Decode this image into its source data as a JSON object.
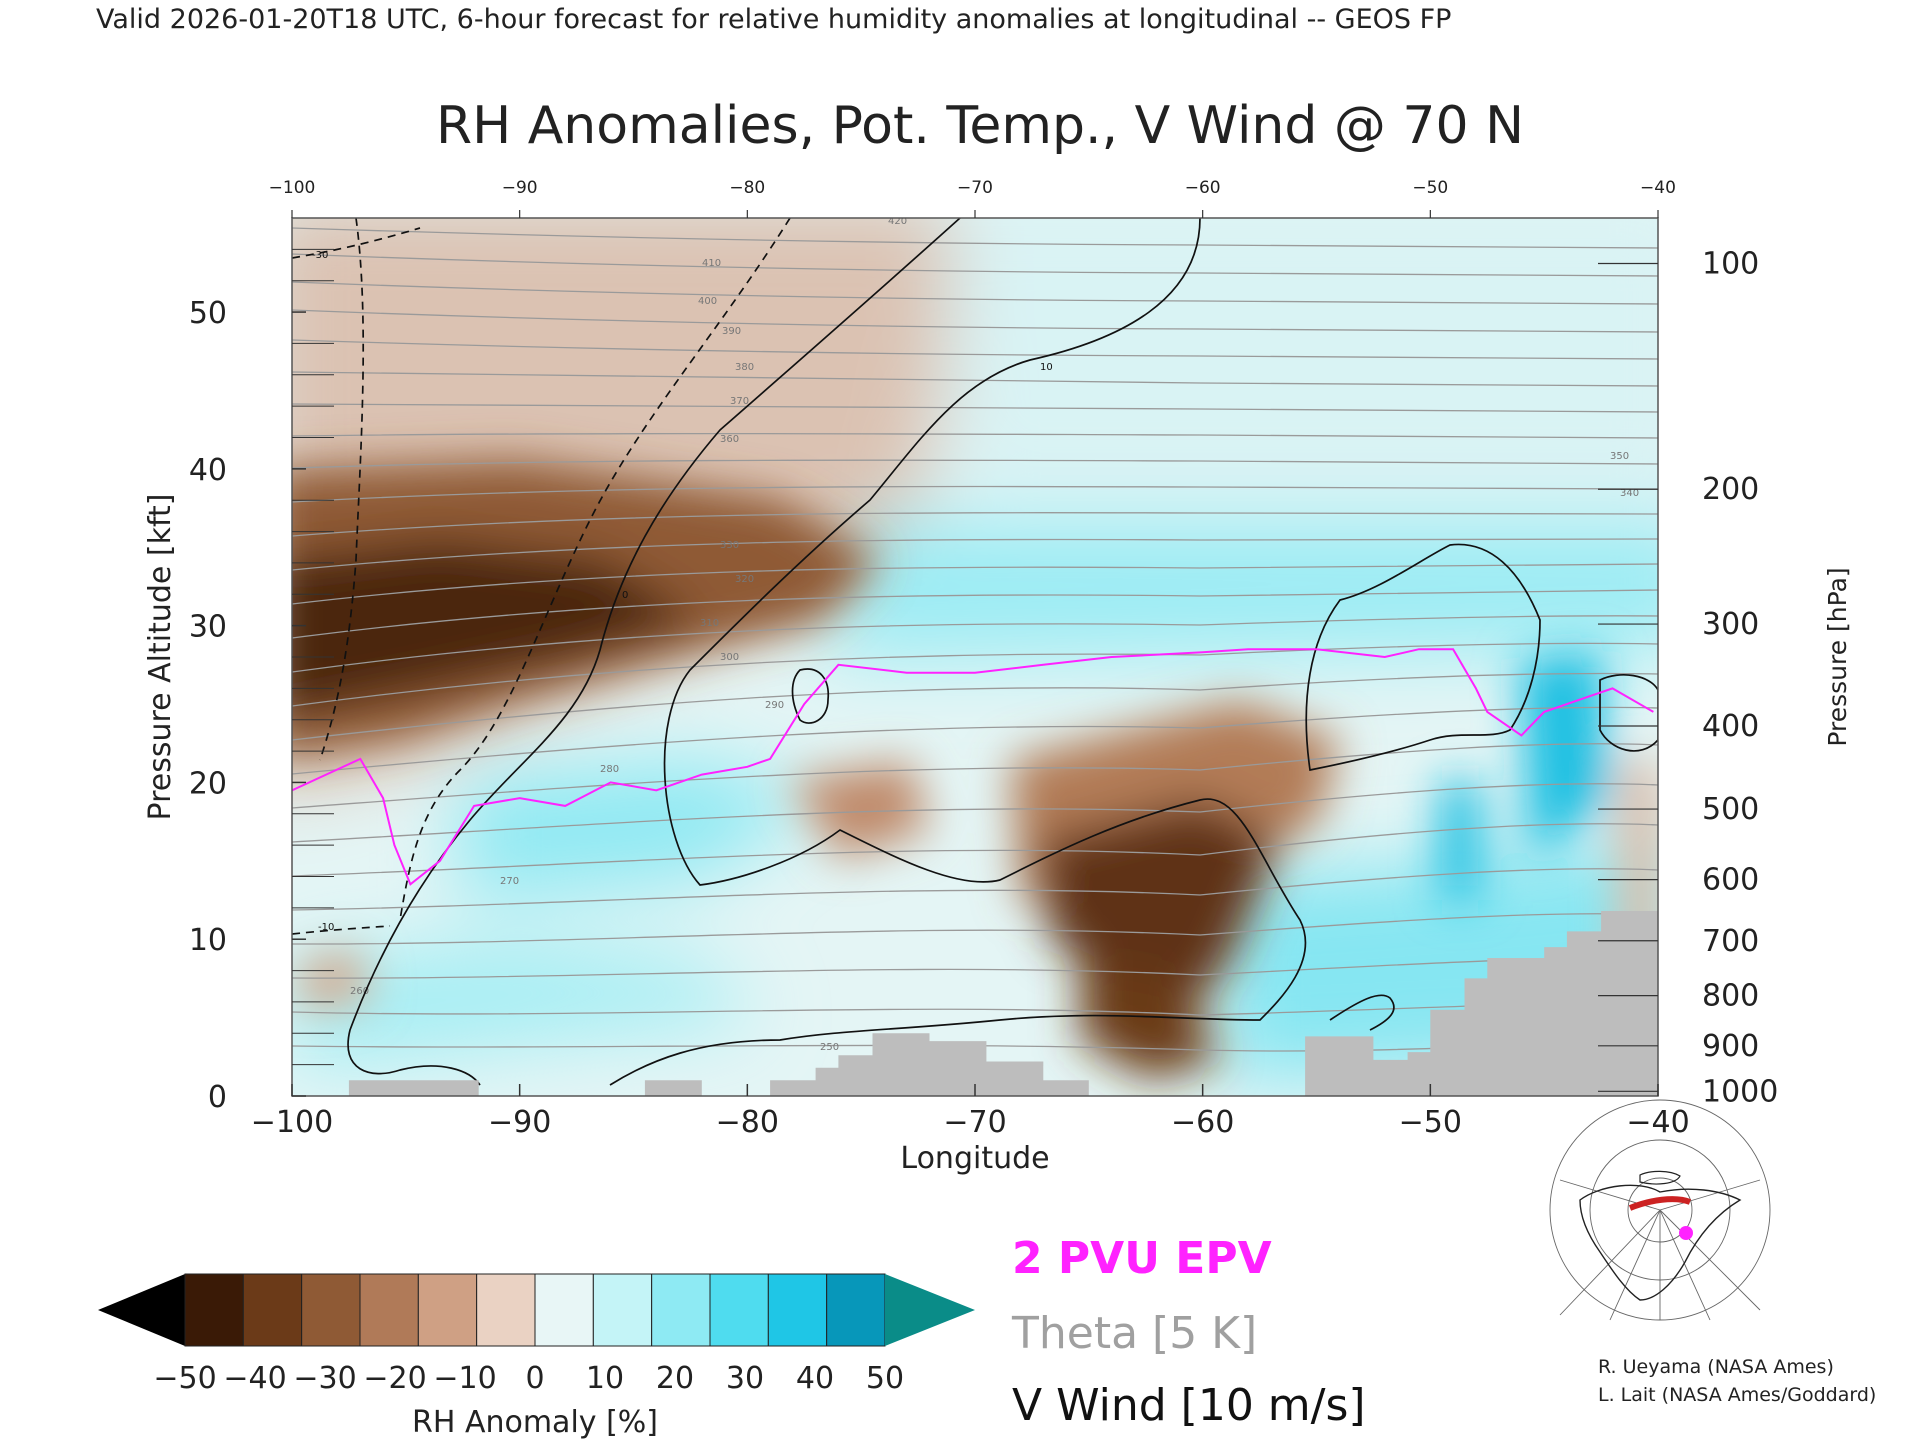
{
  "header": "Valid 2026-01-20T18 UTC, 6-hour forecast for relative humidity anomalies at longitudinal -- GEOS FP",
  "chart_data": {
    "type": "heatmap",
    "title": "RH Anomalies, Pot. Temp., V Wind @ 70 N",
    "xlabel": "Longitude",
    "ylabel": "Pressure Altitude [kft]",
    "y2label": "Pressure [hPa]",
    "xlim": [
      -100,
      -40
    ],
    "ylim": [
      0,
      56
    ],
    "xticks": [
      "−100",
      "−90",
      "−80",
      "−70",
      "−60",
      "−50",
      "−40"
    ],
    "top_xticks": [
      "−100",
      "−90",
      "−80",
      "−70",
      "−60",
      "−50",
      "−40"
    ],
    "yticks": [
      "0",
      "10",
      "20",
      "30",
      "40",
      "50"
    ],
    "pressure_ticks": [
      {
        "label": "100",
        "kft": 53.1
      },
      {
        "label": "200",
        "kft": 38.7
      },
      {
        "label": "300",
        "kft": 30.1
      },
      {
        "label": "400",
        "kft": 23.6
      },
      {
        "label": "500",
        "kft": 18.3
      },
      {
        "label": "600",
        "kft": 13.8
      },
      {
        "label": "700",
        "kft": 9.9
      },
      {
        "label": "800",
        "kft": 6.4
      },
      {
        "label": "900",
        "kft": 3.2
      },
      {
        "label": "1000",
        "kft": 0.3
      }
    ],
    "colorbar": {
      "label": "RH Anomaly [%]",
      "ticks": [
        "−50",
        "−40",
        "−30",
        "−20",
        "−10",
        "0",
        "10",
        "20",
        "30",
        "40",
        "50"
      ],
      "colors": [
        "#000000",
        "#3a1a06",
        "#6b3a18",
        "#8f5a35",
        "#b07a58",
        "#cfa084",
        "#ead2c3",
        "#e8f6f6",
        "#c4f4f7",
        "#8eeaf3",
        "#4fdcef",
        "#1fc6e6",
        "#0797ba",
        "#0a8c88"
      ]
    },
    "series": [
      {
        "name": "2 PVU EPV",
        "color": "#ff22ff",
        "x": [
          -100,
          -98.5,
          -97,
          -96,
          -95.5,
          -94.8,
          -93.5,
          -92,
          -90,
          -88,
          -86,
          -84,
          -82,
          -80,
          -79,
          -77.5,
          -76,
          -73,
          -70,
          -67,
          -64,
          -60,
          -58,
          -55,
          -52,
          -50.5,
          -49,
          -48,
          -47.5,
          -46,
          -45,
          -43,
          -42,
          -40.2
        ],
        "y": [
          19.5,
          20.5,
          21.5,
          19,
          16,
          13.5,
          15,
          18.5,
          19,
          18.5,
          20,
          19.5,
          20.5,
          21,
          21.5,
          25,
          27.5,
          27,
          27,
          27.5,
          28,
          28.3,
          28.5,
          28.5,
          28,
          28.5,
          28.5,
          26,
          24.5,
          23,
          24.5,
          25.5,
          26,
          24.5
        ]
      },
      {
        "name": "V Wind [10 m/s]",
        "color": "#111111",
        "levels": [
          "-30",
          "-10",
          "0",
          "10"
        ]
      },
      {
        "name": "Theta [5 K]",
        "color": "#a0a0a0",
        "levels": [
          "250",
          "260",
          "270",
          "280",
          "290",
          "300",
          "310",
          "320",
          "330",
          "340",
          "350",
          "360",
          "370",
          "380",
          "390",
          "400",
          "410",
          "420"
        ]
      }
    ],
    "terrain": {
      "x": [
        -100,
        -97.5,
        -97.5,
        -91.8,
        -91.8,
        -84.5,
        -84.5,
        -82,
        -82,
        -79,
        -79,
        -77,
        -77,
        -76,
        -76,
        -74.5,
        -74.5,
        -72,
        -72,
        -69.5,
        -69.5,
        -67,
        -67,
        -65,
        -65,
        -55.5,
        -55.5,
        -52.5,
        -52.5,
        -51,
        -51,
        -50,
        -50,
        -48.5,
        -48.5,
        -47.5,
        -47.5,
        -45,
        -45,
        -44,
        -44,
        -42.5,
        -42.5,
        -40,
        -40,
        -100
      ],
      "y": [
        0,
        0,
        1,
        1,
        0,
        0,
        1,
        1,
        0,
        0,
        1,
        1,
        1.8,
        1.8,
        2.6,
        2.6,
        4,
        4,
        3.5,
        3.5,
        2.2,
        2.2,
        1,
        1,
        0,
        0,
        3.8,
        3.8,
        2.3,
        2.3,
        2.8,
        2.8,
        5.5,
        5.5,
        7.5,
        7.5,
        8.8,
        8.8,
        9.5,
        9.5,
        10.5,
        10.5,
        11.8,
        11.8,
        0,
        0
      ],
      "color": "#bdbdbd"
    },
    "grid": false,
    "legend_placement": "bottom-center"
  },
  "legend": {
    "epv": "2 PVU EPV",
    "theta": "Theta [5 K]",
    "wind": "V Wind [10 m/s]"
  },
  "credits": [
    "R. Ueyama (NASA Ames)",
    "L. Lait (NASA Ames/Goddard)"
  ]
}
